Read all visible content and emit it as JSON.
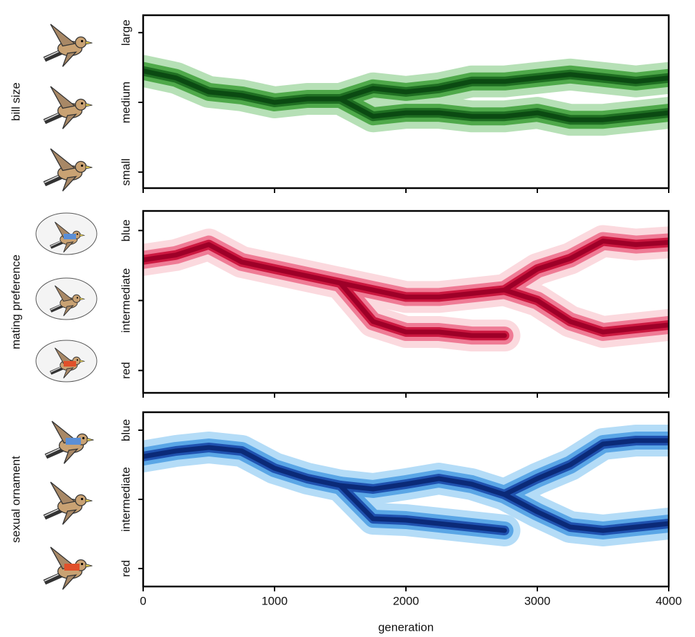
{
  "chart_data": [
    {
      "type": "line",
      "ylabel": "bill size",
      "x": [
        0,
        250,
        500,
        750,
        1000,
        1250,
        1500,
        1750,
        2000,
        2250,
        2500,
        2750,
        3000,
        3250,
        3500,
        3750,
        4000
      ],
      "xlim": [
        0,
        4000
      ],
      "xticks": [
        0,
        1000,
        2000,
        3000,
        4000
      ],
      "show_xtick_labels": false,
      "ylim": [
        -1.23,
        1.25
      ],
      "yticks": [
        {
          "value": -1,
          "label": "small"
        },
        {
          "value": 0,
          "label": "medium"
        },
        {
          "value": 1,
          "label": "large"
        }
      ],
      "color": "#0b4a12",
      "band_colors": [
        "#b6e0b6",
        "#4fa94a",
        "#1f6f22"
      ],
      "series": [
        {
          "values": [
            0.45,
            0.35,
            0.15,
            0.1,
            0.0,
            0.05,
            0.05,
            null,
            null,
            null,
            null,
            null,
            null,
            null,
            null,
            null,
            null
          ]
        },
        {
          "values": [
            null,
            null,
            null,
            null,
            null,
            null,
            0.05,
            0.2,
            0.15,
            0.2,
            0.3,
            0.3,
            0.35,
            0.4,
            0.35,
            0.3,
            0.35
          ]
        },
        {
          "values": [
            null,
            null,
            null,
            null,
            null,
            null,
            0.05,
            -0.2,
            -0.15,
            -0.15,
            -0.2,
            -0.2,
            -0.15,
            -0.25,
            -0.25,
            -0.2,
            -0.15
          ]
        }
      ]
    },
    {
      "type": "line",
      "ylabel": "mating preference",
      "x": [
        0,
        250,
        500,
        750,
        1000,
        1250,
        1500,
        1750,
        2000,
        2250,
        2500,
        2750,
        3000,
        3250,
        3500,
        3750,
        4000
      ],
      "xlim": [
        0,
        4000
      ],
      "xticks": [
        0,
        1000,
        2000,
        3000,
        4000
      ],
      "show_xtick_labels": false,
      "ylim": [
        -1.32,
        1.28
      ],
      "yticks": [
        {
          "value": -1,
          "label": "red"
        },
        {
          "value": 0,
          "label": "intermediate"
        },
        {
          "value": 1,
          "label": "blue"
        }
      ],
      "color": "#9e0028",
      "band_colors": [
        "#fbd9de",
        "#ef7b95",
        "#cc1840"
      ],
      "series": [
        {
          "values": [
            0.58,
            0.65,
            0.8,
            0.55,
            0.45,
            0.35,
            0.25,
            null,
            null,
            null,
            null,
            null,
            null,
            null,
            null,
            null,
            null
          ]
        },
        {
          "values": [
            null,
            null,
            null,
            null,
            null,
            null,
            0.25,
            0.15,
            0.05,
            0.05,
            0.1,
            0.15,
            0.0,
            -0.3,
            -0.45,
            -0.4,
            -0.35
          ]
        },
        {
          "values": [
            null,
            null,
            null,
            null,
            null,
            null,
            0.25,
            -0.3,
            -0.45,
            -0.45,
            -0.5,
            -0.5,
            null,
            null,
            null,
            null,
            null
          ]
        },
        {
          "values": [
            null,
            null,
            null,
            null,
            null,
            null,
            null,
            null,
            null,
            null,
            null,
            0.15,
            0.45,
            0.6,
            0.85,
            0.8,
            0.83
          ]
        }
      ]
    },
    {
      "type": "line",
      "ylabel": "sexual ornament",
      "xlabel": "generation",
      "x": [
        0,
        250,
        500,
        750,
        1000,
        1250,
        1500,
        1750,
        2000,
        2250,
        2500,
        2750,
        3000,
        3250,
        3500,
        3750,
        4000
      ],
      "xlim": [
        0,
        4000
      ],
      "xticks": [
        0,
        1000,
        2000,
        3000,
        4000
      ],
      "show_xtick_labels": true,
      "ylim": [
        -1.26,
        1.26
      ],
      "yticks": [
        {
          "value": -1,
          "label": "red"
        },
        {
          "value": 0,
          "label": "intermediate"
        },
        {
          "value": 1,
          "label": "blue"
        }
      ],
      "color": "#0b2a78",
      "band_colors": [
        "#b4dcf7",
        "#5aa6e6",
        "#1f52b0"
      ],
      "series": [
        {
          "values": [
            0.62,
            0.7,
            0.75,
            0.7,
            0.45,
            0.3,
            0.2,
            null,
            null,
            null,
            null,
            null,
            null,
            null,
            null,
            null,
            null
          ]
        },
        {
          "values": [
            null,
            null,
            null,
            null,
            null,
            null,
            0.2,
            0.15,
            0.22,
            0.3,
            0.22,
            0.07,
            -0.18,
            -0.4,
            -0.45,
            -0.4,
            -0.35
          ]
        },
        {
          "values": [
            null,
            null,
            null,
            null,
            null,
            null,
            0.2,
            -0.28,
            -0.3,
            -0.35,
            -0.4,
            -0.45,
            null,
            null,
            null,
            null,
            null
          ]
        },
        {
          "values": [
            null,
            null,
            null,
            null,
            null,
            null,
            null,
            null,
            null,
            null,
            null,
            0.07,
            0.3,
            0.5,
            0.8,
            0.85,
            0.85
          ]
        }
      ]
    }
  ]
}
